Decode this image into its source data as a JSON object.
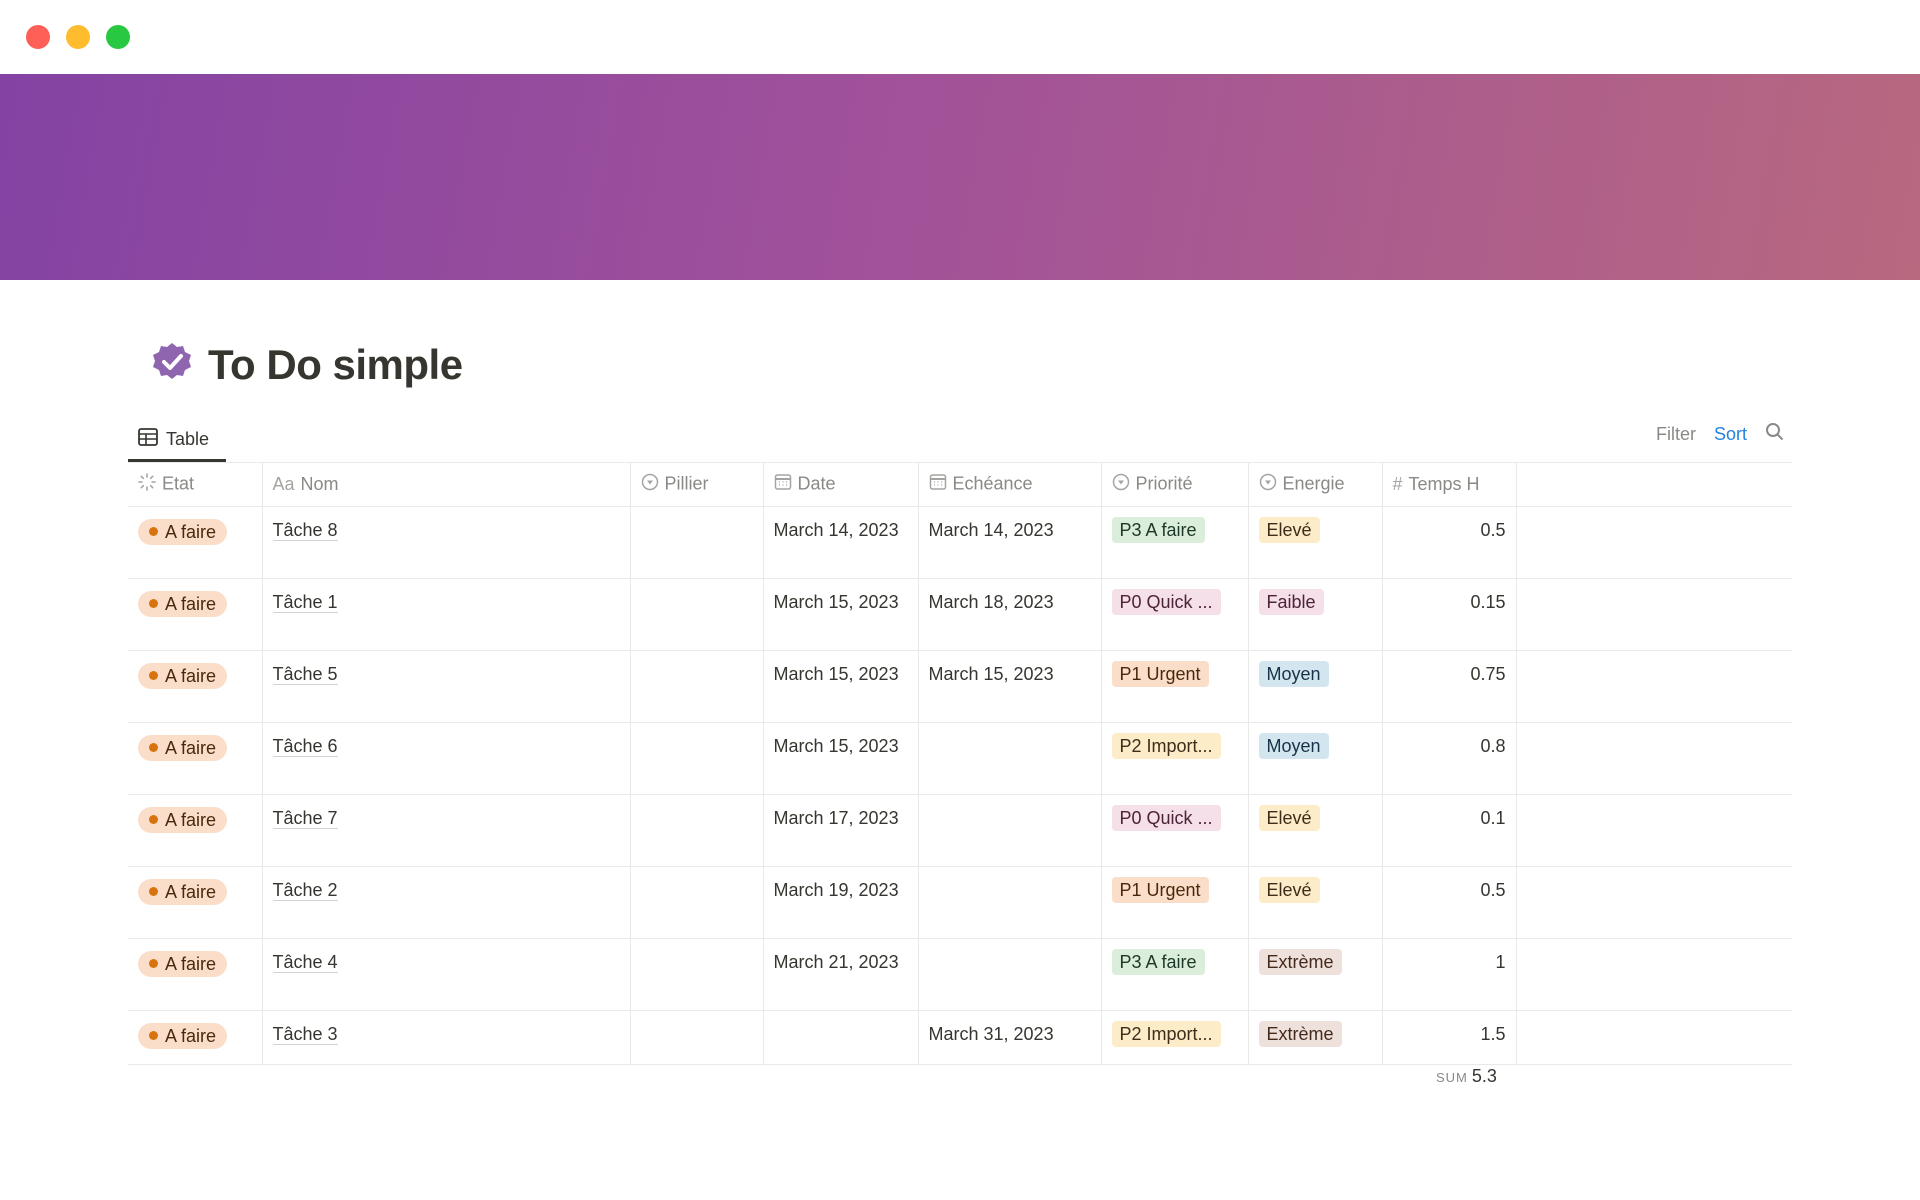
{
  "window": {
    "controls": [
      "close",
      "minimize",
      "maximize"
    ],
    "colors": {
      "close": "#fe5f57",
      "minimize": "#febc2e",
      "maximize": "#28c840"
    }
  },
  "page": {
    "title": "To Do simple",
    "icon": "verified-badge-icon",
    "icon_color": "#9065b0"
  },
  "view": {
    "tab_label": "Table",
    "filter_label": "Filter",
    "sort_label": "Sort"
  },
  "columns": [
    {
      "label": "Etat",
      "icon": "status-icon"
    },
    {
      "label": "Nom",
      "icon": "text-icon",
      "icon_text": "Aa"
    },
    {
      "label": "Pillier",
      "icon": "select-icon"
    },
    {
      "label": "Date",
      "icon": "calendar-icon"
    },
    {
      "label": "Echéance",
      "icon": "calendar-icon"
    },
    {
      "label": "Priorité",
      "icon": "select-icon"
    },
    {
      "label": "Energie",
      "icon": "select-icon"
    },
    {
      "label": "Temps H",
      "icon": "number-icon",
      "icon_text": "#"
    }
  ],
  "rows": [
    {
      "etat": "A faire",
      "nom": "Tâche 8",
      "pillier": "",
      "date": "March 14, 2023",
      "echeance": "March 14, 2023",
      "priorite": "P3 A faire",
      "energie": "Elevé",
      "temps": "0.5"
    },
    {
      "etat": "A faire",
      "nom": "Tâche 1",
      "pillier": "",
      "date": "March 15, 2023",
      "echeance": "March 18, 2023",
      "priorite": "P0 Quick ...",
      "energie": "Faible",
      "temps": "0.15"
    },
    {
      "etat": "A faire",
      "nom": "Tâche 5",
      "pillier": "",
      "date": "March 15, 2023",
      "echeance": "March 15, 2023",
      "priorite": "P1 Urgent",
      "energie": "Moyen",
      "temps": "0.75"
    },
    {
      "etat": "A faire",
      "nom": "Tâche 6",
      "pillier": "",
      "date": "March 15, 2023",
      "echeance": "",
      "priorite": "P2 Import...",
      "energie": "Moyen",
      "temps": "0.8"
    },
    {
      "etat": "A faire",
      "nom": "Tâche 7",
      "pillier": "",
      "date": "March 17, 2023",
      "echeance": "",
      "priorite": "P0 Quick ...",
      "energie": "Elevé",
      "temps": "0.1"
    },
    {
      "etat": "A faire",
      "nom": "Tâche 2",
      "pillier": "",
      "date": "March 19, 2023",
      "echeance": "",
      "priorite": "P1 Urgent",
      "energie": "Elevé",
      "temps": "0.5"
    },
    {
      "etat": "A faire",
      "nom": "Tâche 4",
      "pillier": "",
      "date": "March 21, 2023",
      "echeance": "",
      "priorite": "P3 A faire",
      "energie": "Extrème",
      "temps": "1"
    },
    {
      "etat": "A faire",
      "nom": "Tâche 3",
      "pillier": "",
      "date": "",
      "echeance": "March 31, 2023",
      "priorite": "P2 Import...",
      "energie": "Extrème",
      "temps": "1.5"
    }
  ],
  "tag_colors": {
    "P3 A faire": {
      "bg": "#dbeddb",
      "fg": "#1c3829"
    },
    "P0 Quick ...": {
      "bg": "#f5e0e9",
      "fg": "#4c2337"
    },
    "P1 Urgent": {
      "bg": "#fadec9",
      "fg": "#49290e"
    },
    "P2 Import...": {
      "bg": "#fdecc8",
      "fg": "#402c1b"
    },
    "Elevé": {
      "bg": "#fdecc8",
      "fg": "#402c1b"
    },
    "Faible": {
      "bg": "#f5e0e9",
      "fg": "#4c2337"
    },
    "Moyen": {
      "bg": "#d3e5ef",
      "fg": "#183347"
    },
    "Extrème": {
      "bg": "#eee0da",
      "fg": "#442a1e"
    }
  },
  "footer": {
    "sum_label": "SUM",
    "sum_value": "5.3"
  }
}
